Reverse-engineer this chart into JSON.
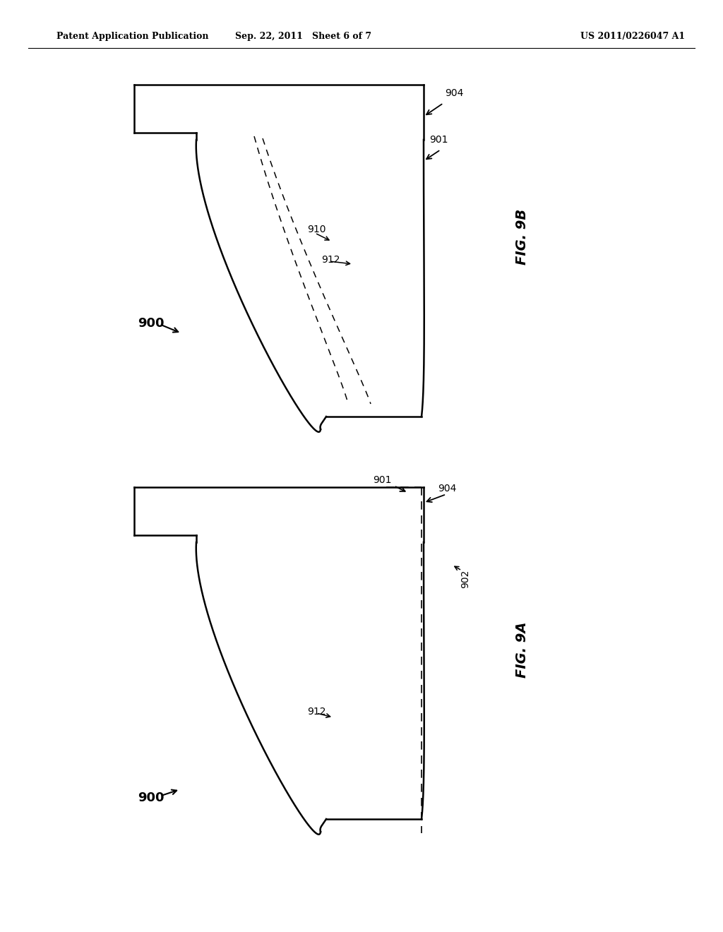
{
  "bg_color": "#ffffff",
  "line_color": "#000000",
  "header_left": "Patent Application Publication",
  "header_center": "Sep. 22, 2011   Sheet 6 of 7",
  "header_right": "US 2011/0226047 A1",
  "fig9b_label": "FIG. 9B",
  "fig9a_label": "FIG. 9A",
  "lw_main": 1.8,
  "lw_dash": 1.1,
  "header_fontsize": 9,
  "ref_fontsize": 10,
  "fig_label_fontsize": 14,
  "bold_ref_fontsize": 13
}
